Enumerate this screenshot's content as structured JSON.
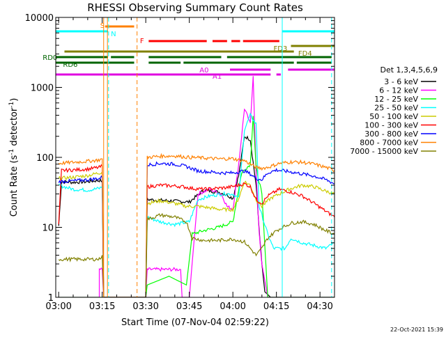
{
  "chart_data": {
    "type": "line",
    "title": "RHESSI Observing Summary Count Rates",
    "xlabel": "Start Time (07-Nov-04 02:59:22)",
    "ylabel_parts": [
      "Count Rate (s",
      "-1",
      " detector",
      "-1",
      ")"
    ],
    "y_scale": "log",
    "ylim": [
      1,
      10000
    ],
    "xlim_min": [
      -1,
      95
    ],
    "x_ticks": [
      {
        "m": 0,
        "label": "03:00"
      },
      {
        "m": 15,
        "label": "03:15"
      },
      {
        "m": 30,
        "label": "03:30"
      },
      {
        "m": 45,
        "label": "03:45"
      },
      {
        "m": 60,
        "label": "04:00"
      },
      {
        "m": 75,
        "label": "04:15"
      },
      {
        "m": 90,
        "label": "04:30"
      }
    ],
    "y_ticks": [
      {
        "v": 1,
        "label": "1"
      },
      {
        "v": 10,
        "label": "10"
      },
      {
        "v": 100,
        "label": "100"
      },
      {
        "v": 1000,
        "label": "1000"
      },
      {
        "v": 10000,
        "label": "10000"
      }
    ],
    "legend_title": "Det 1,3,4,5,6,9",
    "legend_position": "right",
    "series": [
      {
        "name": "3 - 6 keV",
        "color": "#000000",
        "points": [
          [
            0,
            10.5
          ],
          [
            1,
            45
          ],
          [
            5,
            44
          ],
          [
            10,
            45
          ],
          [
            14,
            47
          ],
          [
            15,
            46
          ],
          [
            15.5,
            1
          ],
          [
            30,
            1
          ],
          [
            30.5,
            25
          ],
          [
            38,
            24
          ],
          [
            45,
            23
          ],
          [
            50,
            34
          ],
          [
            55,
            32
          ],
          [
            58,
            29
          ],
          [
            60,
            26
          ],
          [
            62,
            55
          ],
          [
            64,
            200
          ],
          [
            66,
            180
          ],
          [
            68,
            40
          ],
          [
            69,
            10
          ],
          [
            70,
            3
          ],
          [
            71,
            1.2
          ],
          [
            73,
            1
          ],
          [
            80,
            1
          ],
          [
            85,
            1
          ],
          [
            90,
            1
          ],
          [
            95,
            1
          ]
        ]
      },
      {
        "name": "6 - 12 keV",
        "color": "#ff00ff",
        "points": [
          [
            0,
            1
          ],
          [
            14,
            1
          ],
          [
            14,
            2.5
          ],
          [
            15,
            2.5
          ],
          [
            15.5,
            1
          ],
          [
            30,
            1
          ],
          [
            30.5,
            2.5
          ],
          [
            42,
            2.5
          ],
          [
            42.5,
            1
          ],
          [
            45,
            1
          ],
          [
            48,
            30
          ],
          [
            52,
            35
          ],
          [
            56,
            30
          ],
          [
            58,
            20
          ],
          [
            60,
            18
          ],
          [
            62,
            80
          ],
          [
            64,
            500
          ],
          [
            66,
            300
          ],
          [
            67,
            1500
          ],
          [
            68,
            60
          ],
          [
            69,
            9
          ],
          [
            70,
            3
          ],
          [
            72,
            1
          ],
          [
            95,
            1
          ]
        ]
      },
      {
        "name": "12 - 25 keV",
        "color": "#00ff00",
        "points": [
          [
            0,
            1
          ],
          [
            15,
            1
          ],
          [
            30,
            1
          ],
          [
            30.5,
            1.5
          ],
          [
            38,
            2
          ],
          [
            44,
            1.5
          ],
          [
            46,
            8
          ],
          [
            50,
            9
          ],
          [
            55,
            10
          ],
          [
            60,
            12
          ],
          [
            63,
            60
          ],
          [
            66,
            80
          ],
          [
            67,
            400
          ],
          [
            68,
            70
          ],
          [
            70,
            30
          ],
          [
            72,
            1
          ],
          [
            95,
            1
          ]
        ]
      },
      {
        "name": "25 - 50 keV",
        "color": "#00ffff",
        "points": [
          [
            0,
            40
          ],
          [
            5,
            35
          ],
          [
            10,
            34
          ],
          [
            14,
            36
          ],
          [
            15,
            38
          ],
          [
            15.5,
            1
          ],
          [
            30,
            1
          ],
          [
            30.5,
            14
          ],
          [
            35,
            12
          ],
          [
            40,
            11
          ],
          [
            45,
            12
          ],
          [
            48,
            25
          ],
          [
            52,
            28
          ],
          [
            56,
            30
          ],
          [
            60,
            30
          ],
          [
            62,
            26
          ],
          [
            64,
            250
          ],
          [
            66,
            400
          ],
          [
            68,
            300
          ],
          [
            69,
            20
          ],
          [
            72,
            8
          ],
          [
            74,
            5
          ],
          [
            78,
            5
          ],
          [
            80,
            7
          ],
          [
            84,
            6
          ],
          [
            88,
            5.5
          ],
          [
            92,
            5
          ],
          [
            95,
            6
          ]
        ]
      },
      {
        "name": "50 - 100 keV",
        "color": "#cccc00",
        "points": [
          [
            0,
            50
          ],
          [
            5,
            52
          ],
          [
            10,
            55
          ],
          [
            14,
            60
          ],
          [
            15,
            62
          ],
          [
            15.5,
            1
          ],
          [
            30,
            1
          ],
          [
            30.5,
            22
          ],
          [
            35,
            24
          ],
          [
            40,
            22
          ],
          [
            44,
            20
          ],
          [
            48,
            20
          ],
          [
            52,
            19
          ],
          [
            56,
            18
          ],
          [
            60,
            18
          ],
          [
            62,
            26
          ],
          [
            64,
            45
          ],
          [
            66,
            40
          ],
          [
            68,
            25
          ],
          [
            70,
            20
          ],
          [
            73,
            26
          ],
          [
            76,
            30
          ],
          [
            80,
            36
          ],
          [
            84,
            40
          ],
          [
            88,
            38
          ],
          [
            92,
            33
          ],
          [
            95,
            30
          ]
        ]
      },
      {
        "name": "100 - 300 keV",
        "color": "#ff0000",
        "points": [
          [
            0,
            11
          ],
          [
            1,
            65
          ],
          [
            5,
            66
          ],
          [
            10,
            68
          ],
          [
            14,
            72
          ],
          [
            15,
            75
          ],
          [
            15.5,
            1
          ],
          [
            30,
            1
          ],
          [
            30.5,
            38
          ],
          [
            35,
            40
          ],
          [
            40,
            39
          ],
          [
            43,
            38
          ],
          [
            46,
            36
          ],
          [
            50,
            35
          ],
          [
            54,
            36
          ],
          [
            58,
            37
          ],
          [
            62,
            40
          ],
          [
            64,
            42
          ],
          [
            66,
            38
          ],
          [
            68,
            25
          ],
          [
            70,
            22
          ],
          [
            72,
            28
          ],
          [
            76,
            35
          ],
          [
            80,
            32
          ],
          [
            84,
            28
          ],
          [
            88,
            22
          ],
          [
            92,
            17
          ],
          [
            95,
            14
          ]
        ]
      },
      {
        "name": "300 - 800 keV",
        "color": "#0000ff",
        "points": [
          [
            0,
            45
          ],
          [
            5,
            46
          ],
          [
            10,
            48
          ],
          [
            14,
            50
          ],
          [
            15,
            52
          ],
          [
            15.5,
            1
          ],
          [
            30,
            1
          ],
          [
            30.5,
            78
          ],
          [
            35,
            82
          ],
          [
            40,
            80
          ],
          [
            44,
            74
          ],
          [
            48,
            64
          ],
          [
            52,
            62
          ],
          [
            56,
            60
          ],
          [
            60,
            60
          ],
          [
            62,
            62
          ],
          [
            64,
            64
          ],
          [
            66,
            58
          ],
          [
            68,
            50
          ],
          [
            70,
            48
          ],
          [
            72,
            60
          ],
          [
            75,
            66
          ],
          [
            80,
            62
          ],
          [
            84,
            58
          ],
          [
            88,
            54
          ],
          [
            92,
            48
          ],
          [
            95,
            42
          ]
        ]
      },
      {
        "name": "800 - 7000 keV",
        "color": "#ff8000",
        "points": [
          [
            0,
            82
          ],
          [
            5,
            85
          ],
          [
            10,
            88
          ],
          [
            14,
            92
          ],
          [
            15,
            95
          ],
          [
            15.5,
            1
          ],
          [
            30,
            1
          ],
          [
            30.5,
            100
          ],
          [
            35,
            104
          ],
          [
            40,
            105
          ],
          [
            45,
            100
          ],
          [
            50,
            98
          ],
          [
            55,
            95
          ],
          [
            60,
            96
          ],
          [
            62,
            92
          ],
          [
            64,
            90
          ],
          [
            66,
            80
          ],
          [
            68,
            72
          ],
          [
            70,
            70
          ],
          [
            72,
            72
          ],
          [
            76,
            82
          ],
          [
            80,
            86
          ],
          [
            84,
            85
          ],
          [
            88,
            80
          ],
          [
            92,
            72
          ],
          [
            95,
            65
          ]
        ]
      },
      {
        "name": "7000 - 15000 keV",
        "color": "#808000",
        "points": [
          [
            0,
            3.5
          ],
          [
            5,
            3.5
          ],
          [
            10,
            3.5
          ],
          [
            14,
            3.5
          ],
          [
            15,
            4
          ],
          [
            15.5,
            1
          ],
          [
            30,
            1
          ],
          [
            30.5,
            13
          ],
          [
            35,
            15
          ],
          [
            40,
            14
          ],
          [
            44,
            12
          ],
          [
            46,
            7
          ],
          [
            50,
            6.5
          ],
          [
            55,
            6.5
          ],
          [
            60,
            6.8
          ],
          [
            64,
            6.2
          ],
          [
            66,
            5
          ],
          [
            68,
            4
          ],
          [
            70,
            5
          ],
          [
            72,
            7
          ],
          [
            75,
            9
          ],
          [
            80,
            11.5
          ],
          [
            84,
            12
          ],
          [
            88,
            11
          ],
          [
            92,
            9
          ],
          [
            95,
            8
          ]
        ]
      }
    ],
    "flag_bars": [
      {
        "label": "S",
        "color": "#ff8000",
        "y": 38,
        "segments": [
          [
            16,
            26
          ]
        ],
        "label_m": 14.3,
        "label_dy": -2
      },
      {
        "label": "N",
        "color": "#00ffff",
        "y": 45,
        "segments": [
          [
            -1,
            17
          ],
          [
            77,
            95
          ]
        ],
        "label_m": 18,
        "label_dy": 3
      },
      {
        "label": "F",
        "color": "#ff0000",
        "y": 59,
        "segments": [
          [
            31,
            51
          ],
          [
            53,
            58
          ],
          [
            59.5,
            62.5
          ],
          [
            63.5,
            76
          ]
        ],
        "label_m": 28,
        "label_dy": -1
      },
      {
        "label": "FD3",
        "color": "#808000",
        "y": 66,
        "segments": [
          [
            80,
            95
          ]
        ],
        "label_m": 74,
        "label_dy": 3
      },
      {
        "label": "FD4",
        "color": "#808000",
        "y": 74,
        "segments": [
          [
            2,
            81
          ]
        ],
        "label_m": 82.5,
        "label_dy": 2
      },
      {
        "label": "RD0",
        "color": "#006400",
        "y": 82,
        "segments": [
          [
            -1,
            95
          ]
        ],
        "label_m": -5.5,
        "label_dy": 0,
        "gaps_style": "dashes"
      },
      {
        "label": "RD6",
        "color": "#006400",
        "y": 90,
        "segments": [
          [
            -1,
            95
          ]
        ],
        "label_m": 1.5,
        "label_dy": 2,
        "gaps_style": "dashes"
      },
      {
        "label": "A0",
        "color": "#e000e0",
        "y": 100,
        "segments": [
          [
            59,
            73
          ],
          [
            79,
            95
          ]
        ],
        "label_m": 48.5,
        "label_dy": 0
      },
      {
        "label": "A1",
        "color": "#e000e0",
        "y": 107,
        "segments": [
          [
            -1,
            73
          ],
          [
            75,
            76.5
          ]
        ],
        "label_m": 53,
        "label_dy": 2
      }
    ],
    "vlines": [
      {
        "m": 17.2,
        "color": "#00ffff",
        "dashed": true
      },
      {
        "m": 15.5,
        "color": "#ff8000",
        "dashed": false
      },
      {
        "m": 16.8,
        "color": "#ff8000",
        "dashed": false
      },
      {
        "m": 27.0,
        "color": "#ff8000",
        "dashed": true
      },
      {
        "m": 77.0,
        "color": "#00ffff",
        "dashed": false
      },
      {
        "m": 94.0,
        "color": "#00ffff",
        "dashed": true
      }
    ],
    "timestamp": "22-Oct-2021 15:39"
  }
}
